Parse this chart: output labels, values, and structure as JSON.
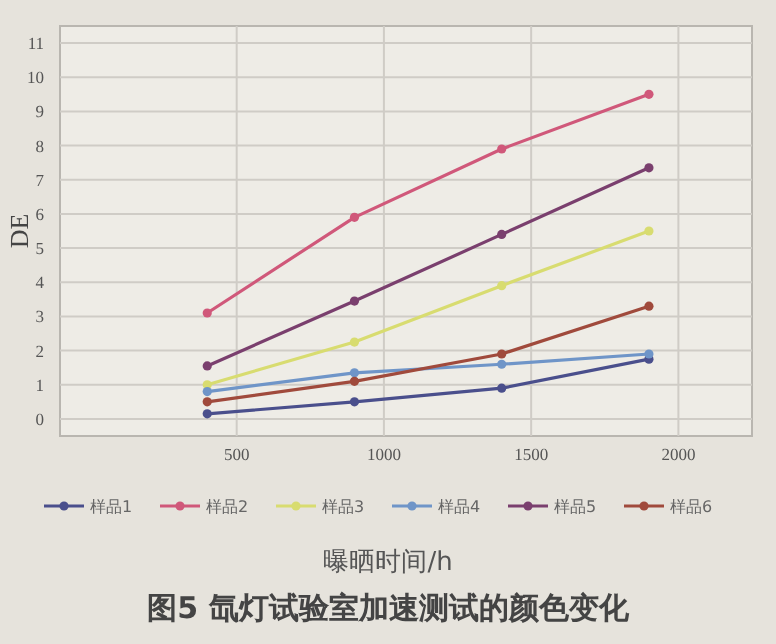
{
  "chart_data": {
    "type": "line",
    "title": "图5 氙灯试验室加速测试的颜色变化",
    "xlabel": "曝晒时间/h",
    "ylabel": "DE",
    "x": [
      400,
      900,
      1400,
      1900
    ],
    "series": [
      {
        "name": "样品1",
        "color": "#4a4f8c",
        "values": [
          0.15,
          0.5,
          0.9,
          1.75
        ]
      },
      {
        "name": "样品2",
        "color": "#d0587a",
        "values": [
          3.1,
          5.9,
          7.9,
          9.5
        ]
      },
      {
        "name": "样品3",
        "color": "#d8dc70",
        "values": [
          1.0,
          2.25,
          3.9,
          5.5
        ]
      },
      {
        "name": "样品4",
        "color": "#6f95c8",
        "values": [
          0.8,
          1.35,
          1.6,
          1.9
        ]
      },
      {
        "name": "样品5",
        "color": "#7a3f6e",
        "values": [
          1.55,
          3.45,
          5.4,
          7.35
        ]
      },
      {
        "name": "样品6",
        "color": "#a04a3c",
        "values": [
          0.5,
          1.1,
          1.9,
          3.3
        ]
      }
    ],
    "xlim": [
      -100,
      2250
    ],
    "xticks": [
      500,
      1000,
      1500,
      2000
    ],
    "ylim": [
      -0.5,
      11.5
    ],
    "yticks": [
      0,
      1,
      2,
      3,
      4,
      5,
      6,
      7,
      8,
      9,
      10,
      11
    ],
    "grid": true,
    "legend": "bottom",
    "marker": "circle",
    "line_style": "solid"
  }
}
